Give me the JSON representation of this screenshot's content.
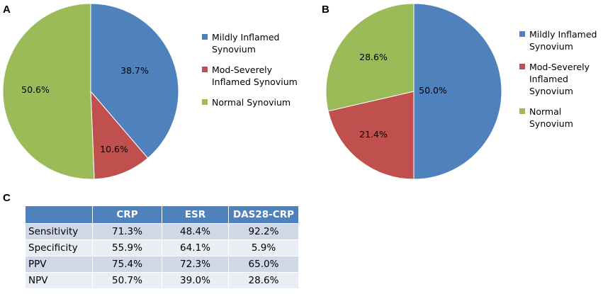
{
  "panels": {
    "a": "A",
    "b": "B",
    "c": "C"
  },
  "colors": {
    "mild": "#4f81bd",
    "severe": "#c0504d",
    "normal": "#9bbb59",
    "table_header": "#4f81bd",
    "table_row_odd": "#d0d8e8",
    "table_row_even": "#e9edf4"
  },
  "chart_data": [
    {
      "type": "pie",
      "panel": "A",
      "categories": [
        "Mildly Inflamed Synovium",
        "Mod-Severely Inflamed Synovium",
        "Normal Synovium"
      ],
      "values": [
        38.7,
        10.6,
        50.6
      ],
      "labels": [
        "38.7%",
        "10.6%",
        "50.6%"
      ],
      "legend": {
        "placement": "right",
        "entries": [
          {
            "line1": "Mildly Inflamed",
            "line2": "Synovium"
          },
          {
            "line1": "Mod-Severely",
            "line2": "Inflamed Synovium"
          },
          {
            "line1": "Normal Synovium",
            "line2": ""
          }
        ]
      }
    },
    {
      "type": "pie",
      "panel": "B",
      "categories": [
        "Mildly Inflamed Synovium",
        "Mod-Severely Inflamed Synovium",
        "Normal Synovium"
      ],
      "values": [
        50.0,
        21.4,
        28.6
      ],
      "labels": [
        "50.0%",
        "21.4%",
        "28.6%"
      ],
      "legend": {
        "placement": "right",
        "entries": [
          {
            "line1": "Mildly Inflamed",
            "line2": "Synovium"
          },
          {
            "line1": "Mod-Severely",
            "line2": "Inflamed Synovium"
          },
          {
            "line1": "Normal Synovium",
            "line2": ""
          }
        ]
      }
    },
    {
      "type": "table",
      "panel": "C",
      "columns": [
        "",
        "CRP",
        "ESR",
        "DAS28-CRP"
      ],
      "rows": [
        [
          "Sensitivity",
          "71.3%",
          "48.4%",
          "92.2%"
        ],
        [
          "Specificity",
          "55.9%",
          "64.1%",
          "5.9%"
        ],
        [
          "PPV",
          "75.4%",
          "72.3%",
          "65.0%"
        ],
        [
          "NPV",
          "50.7%",
          "39.0%",
          "28.6%"
        ]
      ]
    }
  ]
}
